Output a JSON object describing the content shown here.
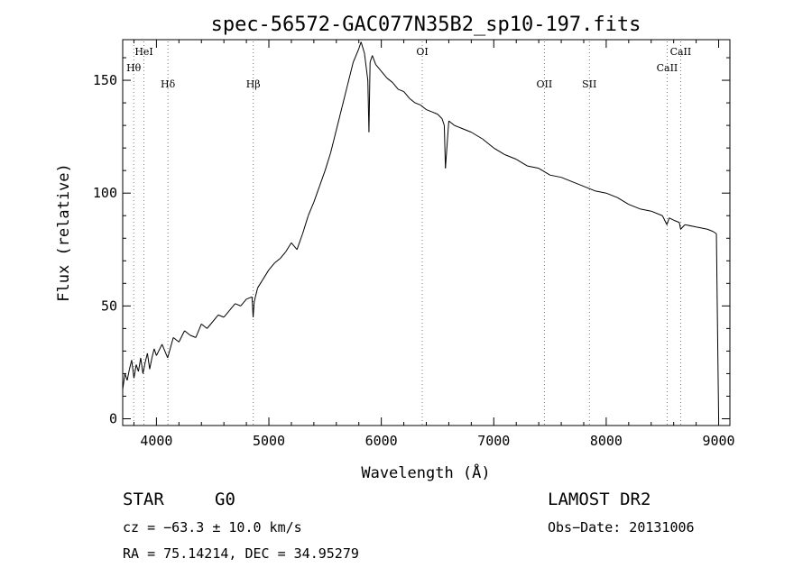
{
  "chart_data": {
    "type": "line",
    "title": "spec-56572-GAC077N35B2_sp10-197.fits",
    "xlabel": "Wavelength (Å)",
    "ylabel": "Flux (relative)",
    "xlim": [
      3700,
      9100
    ],
    "ylim": [
      -3,
      168
    ],
    "grid": false,
    "x_ticks": [
      4000,
      5000,
      6000,
      7000,
      8000,
      9000
    ],
    "y_ticks": [
      0,
      50,
      100,
      150
    ],
    "series": [
      {
        "x": [
          3700,
          3720,
          3740,
          3760,
          3780,
          3800,
          3820,
          3840,
          3860,
          3880,
          3900,
          3920,
          3940,
          3960,
          3980,
          4000,
          4050,
          4100,
          4150,
          4200,
          4250,
          4300,
          4350,
          4400,
          4450,
          4500,
          4550,
          4600,
          4650,
          4700,
          4750,
          4800,
          4850,
          4860,
          4870,
          4900,
          4950,
          5000,
          5050,
          5100,
          5150,
          5200,
          5250,
          5300,
          5350,
          5400,
          5450,
          5500,
          5550,
          5600,
          5650,
          5700,
          5750,
          5800,
          5820,
          5850,
          5880,
          5890,
          5900,
          5920,
          5950,
          6000,
          6050,
          6100,
          6150,
          6200,
          6250,
          6300,
          6350,
          6400,
          6450,
          6500,
          6540,
          6560,
          6570,
          6600,
          6650,
          6700,
          6800,
          6900,
          7000,
          7100,
          7200,
          7300,
          7400,
          7500,
          7600,
          7700,
          7800,
          7900,
          8000,
          8100,
          8200,
          8300,
          8400,
          8500,
          8540,
          8560,
          8600,
          8650,
          8662,
          8700,
          8800,
          8900,
          8950,
          8980,
          8990,
          9000
        ],
        "y": [
          13,
          20,
          17,
          22,
          26,
          18,
          24,
          21,
          27,
          20,
          25,
          29,
          22,
          27,
          31,
          28,
          33,
          27,
          36,
          34,
          39,
          37,
          36,
          42,
          40,
          43,
          46,
          45,
          48,
          51,
          50,
          53,
          54,
          45,
          52,
          58,
          62,
          66,
          69,
          71,
          74,
          78,
          75,
          82,
          90,
          96,
          103,
          110,
          118,
          128,
          138,
          148,
          158,
          164,
          167,
          162,
          150,
          127,
          158,
          161,
          157,
          154,
          151,
          149,
          146,
          145,
          142,
          140,
          139,
          137,
          136,
          135,
          133,
          130,
          111,
          132,
          130,
          129,
          127,
          124,
          120,
          117,
          115,
          112,
          111,
          108,
          107,
          105,
          103,
          101,
          100,
          98,
          95,
          93,
          92,
          90,
          86,
          89,
          88,
          87,
          84,
          86,
          85,
          84,
          83,
          82,
          40,
          0
        ]
      }
    ],
    "line_markers": [
      {
        "label": "Hθ",
        "x": 3798
      },
      {
        "label": "HeI",
        "x": 3889
      },
      {
        "label": "Hδ",
        "x": 4102
      },
      {
        "label": "Hβ",
        "x": 4861
      },
      {
        "label": "OI",
        "x": 6364
      },
      {
        "label": "OII",
        "x": 7450
      },
      {
        "label": "SII",
        "x": 7850
      },
      {
        "label": "CaII",
        "x": 8542
      },
      {
        "label": "CaII",
        "x": 8662
      }
    ]
  },
  "info": {
    "object_class": "STAR",
    "subclass": "G0",
    "survey": "LAMOST DR2",
    "cz": "cz = −63.3 ± 10.0 km/s",
    "obs_date": "Obs−Date: 20131006",
    "coords": "RA =  75.14214, DEC =  34.95279"
  }
}
